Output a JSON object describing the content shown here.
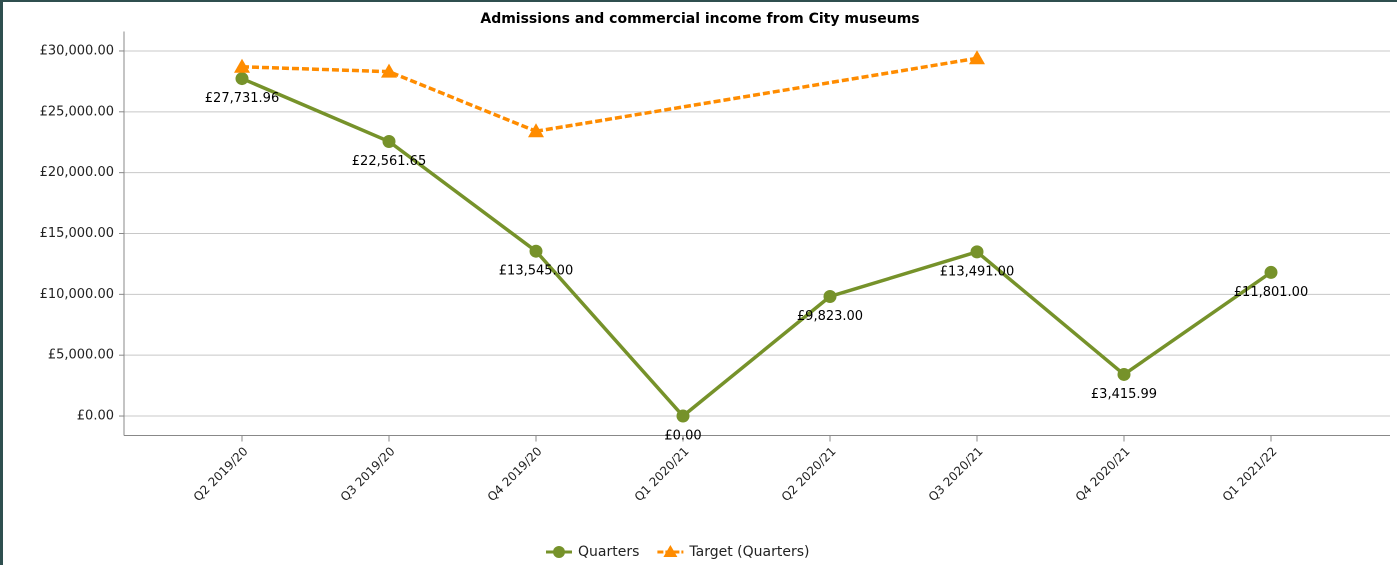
{
  "chart_data": {
    "type": "line",
    "title": "Admissions and commercial income from City museums",
    "categories": [
      "Q2 2019/20",
      "Q3 2019/20",
      "Q4 2019/20",
      "Q1 2020/21",
      "Q2 2020/21",
      "Q3 2020/21",
      "Q4 2020/21",
      "Q1 2021/22"
    ],
    "series": [
      {
        "name": "Quarters",
        "color": "#76922a",
        "marker": "circle",
        "dashed": false,
        "values": [
          27731.96,
          22561.65,
          13545,
          0,
          9823,
          13491,
          3415.99,
          11801
        ],
        "value_labels": [
          "£27,731.96",
          "£22,561.65",
          "£13,545.00",
          "£0.00",
          "£9,823.00",
          "£13,491.00",
          "£3,415.99",
          "£11,801.00"
        ]
      },
      {
        "name": "Target (Quarters)",
        "color": "#ff8c00",
        "marker": "triangle",
        "dashed": true,
        "values": [
          28700,
          28300,
          23400,
          null,
          null,
          29400,
          null,
          null
        ]
      }
    ],
    "ylim": [
      -1600,
      31600
    ],
    "yticks": [
      {
        "value": 0,
        "label": "£0.00"
      },
      {
        "value": 5000,
        "label": "£5,000.00"
      },
      {
        "value": 10000,
        "label": "£10,000.00"
      },
      {
        "value": 15000,
        "label": "£15,000.00"
      },
      {
        "value": 20000,
        "label": "£20,000.00"
      },
      {
        "value": 25000,
        "label": "£25,000.00"
      },
      {
        "value": 30000,
        "label": "£30,000.00"
      }
    ],
    "grid": true,
    "legend": "bottom"
  }
}
